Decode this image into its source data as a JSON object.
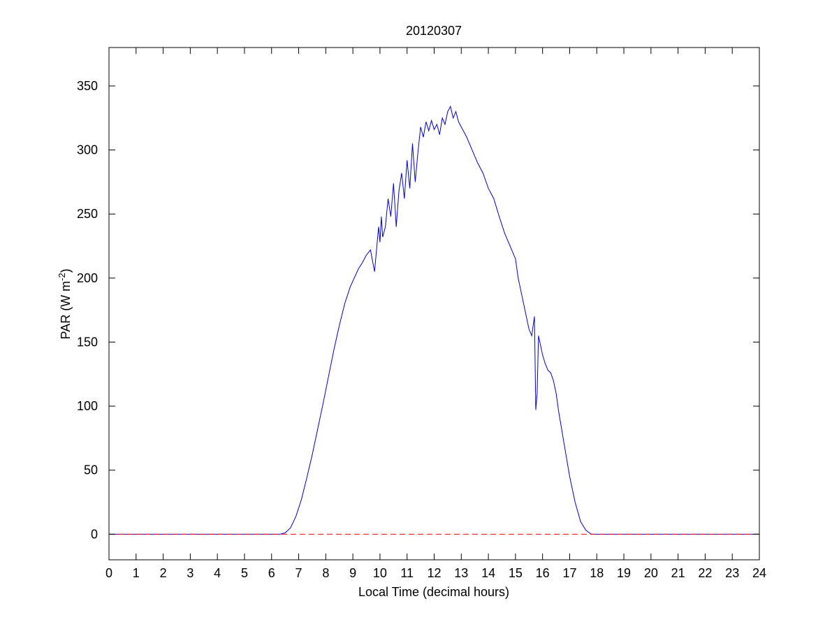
{
  "chart_data": {
    "type": "line",
    "title": "20120307",
    "xlabel": "Local Time (decimal hours)",
    "ylabel": {
      "prefix": "PAR (W m",
      "superscript": "-2",
      "suffix": ")"
    },
    "xlim": [
      0,
      24
    ],
    "ylim": [
      -20,
      380
    ],
    "xticks": [
      0,
      1,
      2,
      3,
      4,
      5,
      6,
      7,
      8,
      9,
      10,
      11,
      12,
      13,
      14,
      15,
      16,
      17,
      18,
      19,
      20,
      21,
      22,
      23,
      24
    ],
    "yticks": [
      0,
      50,
      100,
      150,
      200,
      250,
      300,
      350
    ],
    "grid": false,
    "colors": {
      "series": "#0000cc",
      "zero_line": "#ff0000",
      "axes": "#000000"
    },
    "series": [
      {
        "type": "line",
        "style": "solid",
        "x": [
          0,
          6.0,
          6.3,
          6.5,
          6.7,
          6.9,
          7.1,
          7.3,
          7.5,
          7.7,
          7.9,
          8.1,
          8.3,
          8.5,
          8.7,
          8.9,
          9.05,
          9.2,
          9.35,
          9.5,
          9.65,
          9.8,
          9.95,
          10.0,
          10.05,
          10.1,
          10.2,
          10.3,
          10.4,
          10.5,
          10.6,
          10.7,
          10.8,
          10.9,
          11.0,
          11.1,
          11.2,
          11.3,
          11.4,
          11.5,
          11.6,
          11.7,
          11.8,
          11.9,
          12.0,
          12.1,
          12.2,
          12.3,
          12.4,
          12.5,
          12.6,
          12.7,
          12.8,
          12.9,
          13.0,
          13.2,
          13.4,
          13.6,
          13.8,
          14.0,
          14.2,
          14.4,
          14.6,
          14.8,
          15.0,
          15.1,
          15.2,
          15.3,
          15.4,
          15.5,
          15.6,
          15.7,
          15.75,
          15.8,
          15.85,
          15.9,
          16.0,
          16.1,
          16.2,
          16.3,
          16.4,
          16.5,
          16.6,
          16.8,
          17.0,
          17.2,
          17.4,
          17.6,
          17.8,
          18.0,
          18.2,
          18.35,
          18.5,
          19.0,
          24
        ],
        "y": [
          0,
          0,
          0,
          1,
          5,
          14,
          27,
          44,
          62,
          82,
          102,
          123,
          144,
          163,
          180,
          193,
          200,
          207,
          212,
          218,
          222,
          205,
          240,
          228,
          248,
          232,
          240,
          262,
          248,
          274,
          240,
          268,
          282,
          262,
          292,
          270,
          305,
          275,
          298,
          318,
          310,
          322,
          315,
          323,
          316,
          320,
          312,
          325,
          320,
          330,
          334,
          325,
          330,
          322,
          318,
          310,
          300,
          290,
          282,
          270,
          262,
          248,
          235,
          225,
          215,
          200,
          190,
          180,
          170,
          160,
          155,
          170,
          97,
          110,
          155,
          150,
          140,
          133,
          128,
          126,
          120,
          110,
          95,
          70,
          45,
          25,
          10,
          3,
          0,
          0,
          0,
          0,
          0,
          0,
          0
        ]
      },
      {
        "type": "line",
        "style": "dashed",
        "x": [
          0,
          24
        ],
        "y": [
          0,
          0
        ]
      }
    ]
  }
}
